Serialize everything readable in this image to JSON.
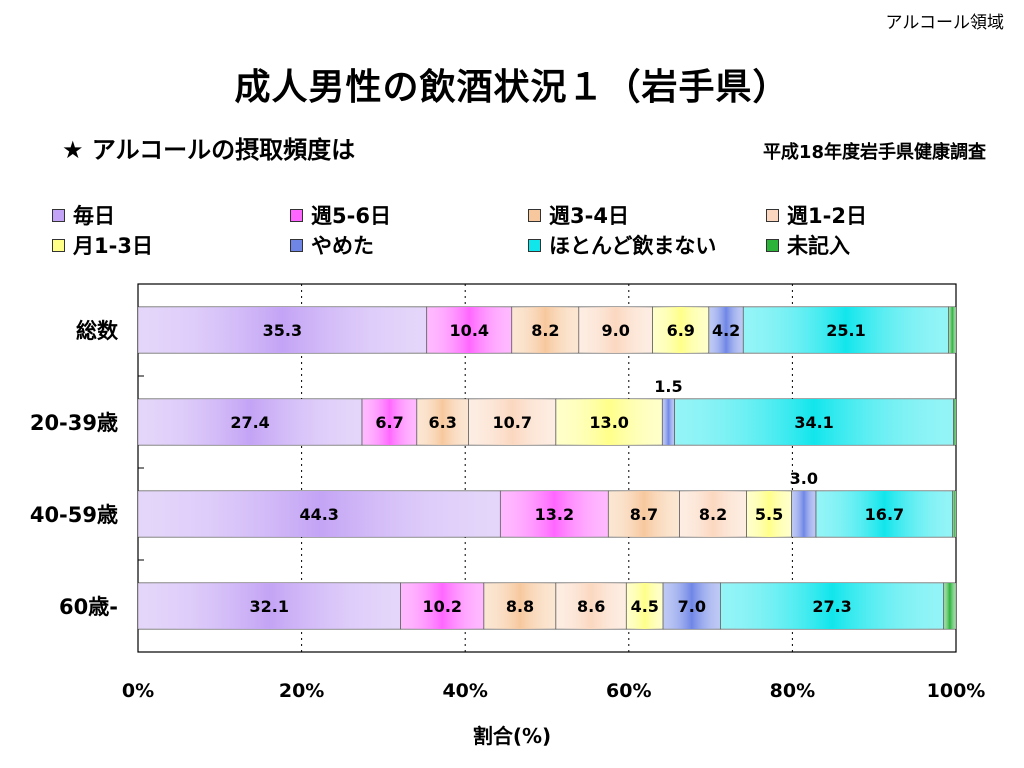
{
  "corner_label": "アルコール領域",
  "title": "成人男性の飲酒状況１（岩手県）",
  "subtitle": "★ アルコールの摂取頻度は",
  "source": "平成18年度岩手県健康調査",
  "colors": {
    "毎日": "#c3a3f5",
    "週5-6日": "#ff66ff",
    "週3-4日": "#f7c89d",
    "週1-2日": "#fbd7bf",
    "月1-3日": "#ffff88",
    "やめた": "#6f86e6",
    "ほとんど飲まない": "#11e6ec",
    "未記入": "#2bb33a"
  },
  "chart_data": {
    "type": "bar",
    "orientation": "horizontal-stacked-100",
    "categories": [
      "総数",
      "20-39歳",
      "40-59歳",
      "60歳-"
    ],
    "series": [
      {
        "name": "毎日",
        "values": [
          35.3,
          27.4,
          44.3,
          32.1
        ]
      },
      {
        "name": "週5-6日",
        "values": [
          10.4,
          6.7,
          13.2,
          10.2
        ]
      },
      {
        "name": "週3-4日",
        "values": [
          8.2,
          6.3,
          8.7,
          8.8
        ]
      },
      {
        "name": "週1-2日",
        "values": [
          9.0,
          10.7,
          8.2,
          8.6
        ]
      },
      {
        "name": "月1-3日",
        "values": [
          6.9,
          13.0,
          5.5,
          4.5
        ]
      },
      {
        "name": "やめた",
        "values": [
          4.2,
          1.5,
          3.0,
          7.0
        ]
      },
      {
        "name": "ほとんど飲まない",
        "values": [
          25.1,
          34.1,
          16.7,
          27.3
        ]
      },
      {
        "name": "未記入",
        "values": [
          0.9,
          0.3,
          0.4,
          1.5
        ]
      }
    ],
    "labels_hidden": {
      "未記入": true
    },
    "xlabel": "割合(%)",
    "xlim": [
      0,
      100
    ],
    "xticks": [
      "0%",
      "20%",
      "40%",
      "60%",
      "80%",
      "100%"
    ],
    "grid": "vertical dotted",
    "legend_position": "top"
  }
}
